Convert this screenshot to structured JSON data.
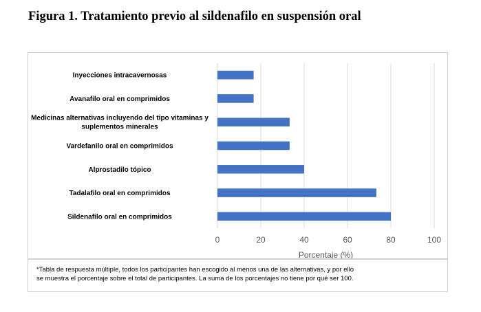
{
  "figure": {
    "title": "Figura 1. Tratamiento previo al sildenafilo en suspensión oral"
  },
  "chart_data": {
    "type": "bar",
    "orientation": "horizontal",
    "categories": [
      "Inyecciones intracavernosas",
      "Avanafilo oral en comprimidos",
      "Medicinas alternativas incluyendo del tipo vitaminas y suplementos minerales",
      "Vardefanilo oral en comprimidos",
      "Alprostadilo tópico",
      "Tadalafilo oral en comprimidos",
      "Sildenafilo oral en comprimidos"
    ],
    "category_lines": [
      [
        "Inyecciones intracavernosas"
      ],
      [
        "Avanafilo oral en comprimidos"
      ],
      [
        "Medicinas alternativas incluyendo del tipo vitaminas y",
        "suplementos minerales"
      ],
      [
        "Vardefanilo oral en comprimidos"
      ],
      [
        "Alprostadilo tópico"
      ],
      [
        "Tadalafilo oral en comprimidos"
      ],
      [
        "Sildenafilo oral en comprimidos"
      ]
    ],
    "values": [
      16.7,
      16.7,
      33.3,
      33.3,
      40,
      73.3,
      80
    ],
    "xlabel": "Porcentaje (%)",
    "ylabel": "",
    "xlim": [
      0,
      100
    ],
    "xticks": [
      0,
      20,
      40,
      60,
      80,
      100
    ],
    "grid": "vertical",
    "bar_color": "#4472C4",
    "grid_color": "#d9d9d9"
  },
  "note": {
    "line1": "*Tabla de respuesta múltiple, todos los participantes han escogido al menos una de las alternativas, y por ello",
    "line2": "se muestra el porcentaje sobre el total de participantes. La suma de los porcentajes no tiene por qué ser 100."
  }
}
